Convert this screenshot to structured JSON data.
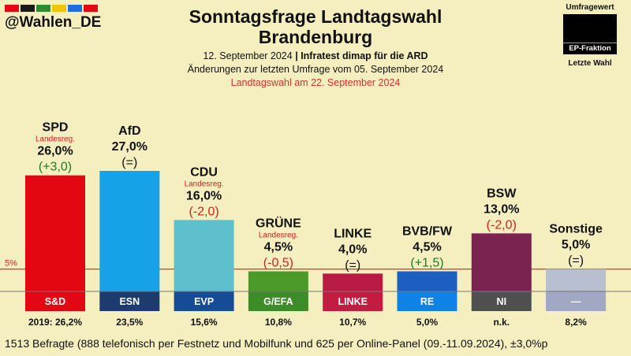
{
  "handle": "@Wahlen_DE",
  "brand_stripes": [
    "#e30613",
    "#1a1a1a",
    "#2e8b2e",
    "#f2c500",
    "#1e6fd9",
    "#e30613"
  ],
  "title_line1": "Sonntagsfrage Landtagswahl",
  "title_line2": "Brandenburg",
  "date": "12. September 2024",
  "separator": "|",
  "pollster": "Infratest dimap für die ARD",
  "changes_note": "Änderungen zur letzten Umfrage vom 05. September 2024",
  "election_note": "Landtagswahl am 22. September 2024",
  "legend": {
    "poll_value": "Umfragewert",
    "faction": "EP-Fraktion",
    "last_election": "Letzte Wahl"
  },
  "threshold_label": "5%",
  "gov_label": "Landesreg.",
  "footnote": "1513 Befragte (888 telefonisch per Festnetz und Mobilfunk und 625 per Online-Panel (09.-11.09.2024), ±3,0%p",
  "colors": {
    "background": "#f5eebf",
    "threshold_line": "#c62828",
    "positive_change": "#1e7b1e",
    "negative_change": "#d32020",
    "government_label": "#d32020"
  },
  "chart_data": {
    "type": "bar",
    "ylim": [
      0,
      30
    ],
    "threshold": 5,
    "categories": [
      "SPD",
      "AfD",
      "CDU",
      "GRÜNE",
      "LINKE",
      "BVB/FW",
      "BSW",
      "Sonstige"
    ],
    "values": [
      26.0,
      27.0,
      16.0,
      4.5,
      4.0,
      4.5,
      13.0,
      5.0
    ],
    "value_labels": [
      "26,0%",
      "27,0%",
      "16,0%",
      "4,5%",
      "4,0%",
      "4,5%",
      "13,0%",
      "5,0%"
    ],
    "changes": [
      "(+3,0)",
      "(=)",
      "(-2,0)",
      "(-0,5)",
      "(=)",
      "(+1,5)",
      "(-2,0)",
      "(=)"
    ],
    "change_direction": [
      "up",
      "same",
      "down",
      "down",
      "same",
      "up",
      "down",
      "same"
    ],
    "government": [
      true,
      false,
      true,
      true,
      false,
      false,
      false,
      false
    ],
    "bar_colors": [
      "#e30613",
      "#17a1e6",
      "#5ec0cc",
      "#4c9a2a",
      "#b81c45",
      "#1c5fc0",
      "#7a2350",
      "#b8bfd0"
    ],
    "factions": [
      "S&D",
      "ESN",
      "EVP",
      "G/EFA",
      "LINKE",
      "RE",
      "NI",
      "—"
    ],
    "faction_colors": [
      "#e30613",
      "#1c3c6e",
      "#164c96",
      "#3c8c28",
      "#c21c40",
      "#0f82e6",
      "#505050",
      "#a0a8c4"
    ],
    "last_election": [
      "2019: 26,2%",
      "23,5%",
      "15,6%",
      "10,8%",
      "10,7%",
      "5,0%",
      "n.k.",
      "8,2%"
    ]
  }
}
